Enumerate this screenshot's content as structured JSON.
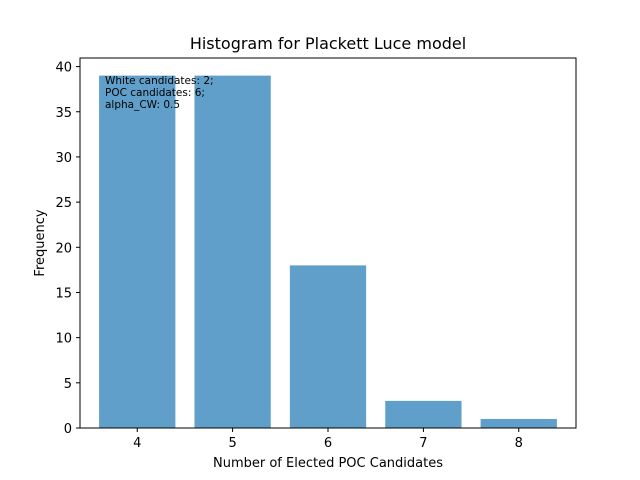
{
  "chart_data": {
    "type": "bar",
    "title": "Histogram for Plackett Luce model",
    "xlabel": "Number of Elected POC Candidates",
    "ylabel": "Frequency",
    "categories": [
      "4",
      "5",
      "6",
      "7",
      "8"
    ],
    "values": [
      39,
      39,
      18,
      3,
      1
    ],
    "ylim": [
      0,
      40.95
    ],
    "xlim": [
      3.4,
      8.6
    ],
    "yticks": [
      0,
      5,
      10,
      15,
      20,
      25,
      30,
      35,
      40
    ],
    "bar_color": "#619fcb",
    "grid": false,
    "legend": "none",
    "annotation": [
      "White candidates: 2;",
      "POC candidates: 6;",
      "alpha_CW: 0.5"
    ]
  }
}
